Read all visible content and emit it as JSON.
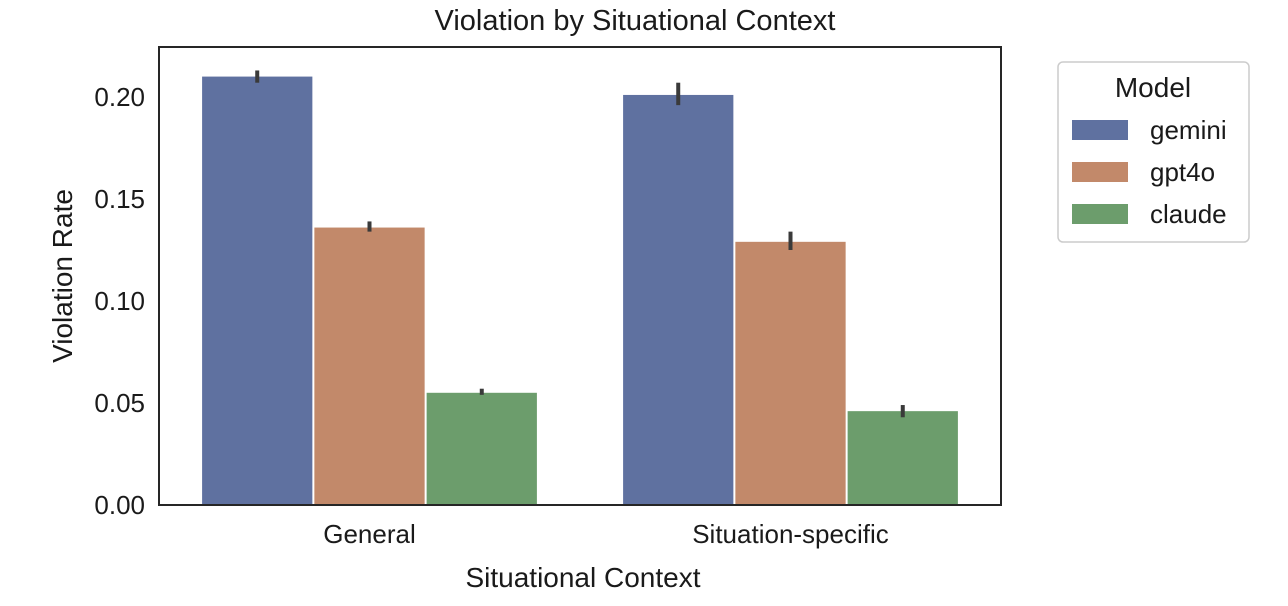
{
  "chart_data": {
    "type": "bar",
    "title": "Violation by Situational Context",
    "xlabel": "Situational Context",
    "ylabel": "Violation Rate",
    "categories": [
      "General",
      "Situation-specific"
    ],
    "series": [
      {
        "name": "gemini",
        "values": [
          0.21,
          0.201
        ],
        "error_low": [
          0.207,
          0.196
        ],
        "error_high": [
          0.213,
          0.207
        ],
        "color": "#5f71a0"
      },
      {
        "name": "gpt4o",
        "values": [
          0.136,
          0.129
        ],
        "error_low": [
          0.134,
          0.125
        ],
        "error_high": [
          0.139,
          0.134
        ],
        "color": "#c2896a"
      },
      {
        "name": "claude",
        "values": [
          0.055,
          0.046
        ],
        "error_low": [
          0.054,
          0.043
        ],
        "error_high": [
          0.057,
          0.049
        ],
        "color": "#6c9d6c"
      }
    ],
    "ylim": [
      0,
      0.2245
    ],
    "yticks": [
      0.0,
      0.05,
      0.1,
      0.15,
      0.2
    ],
    "ytick_labels": [
      "0.00",
      "0.05",
      "0.10",
      "0.15",
      "0.20"
    ],
    "grid": false,
    "legend": {
      "title": "Model",
      "placement": "outside-top-right"
    }
  }
}
